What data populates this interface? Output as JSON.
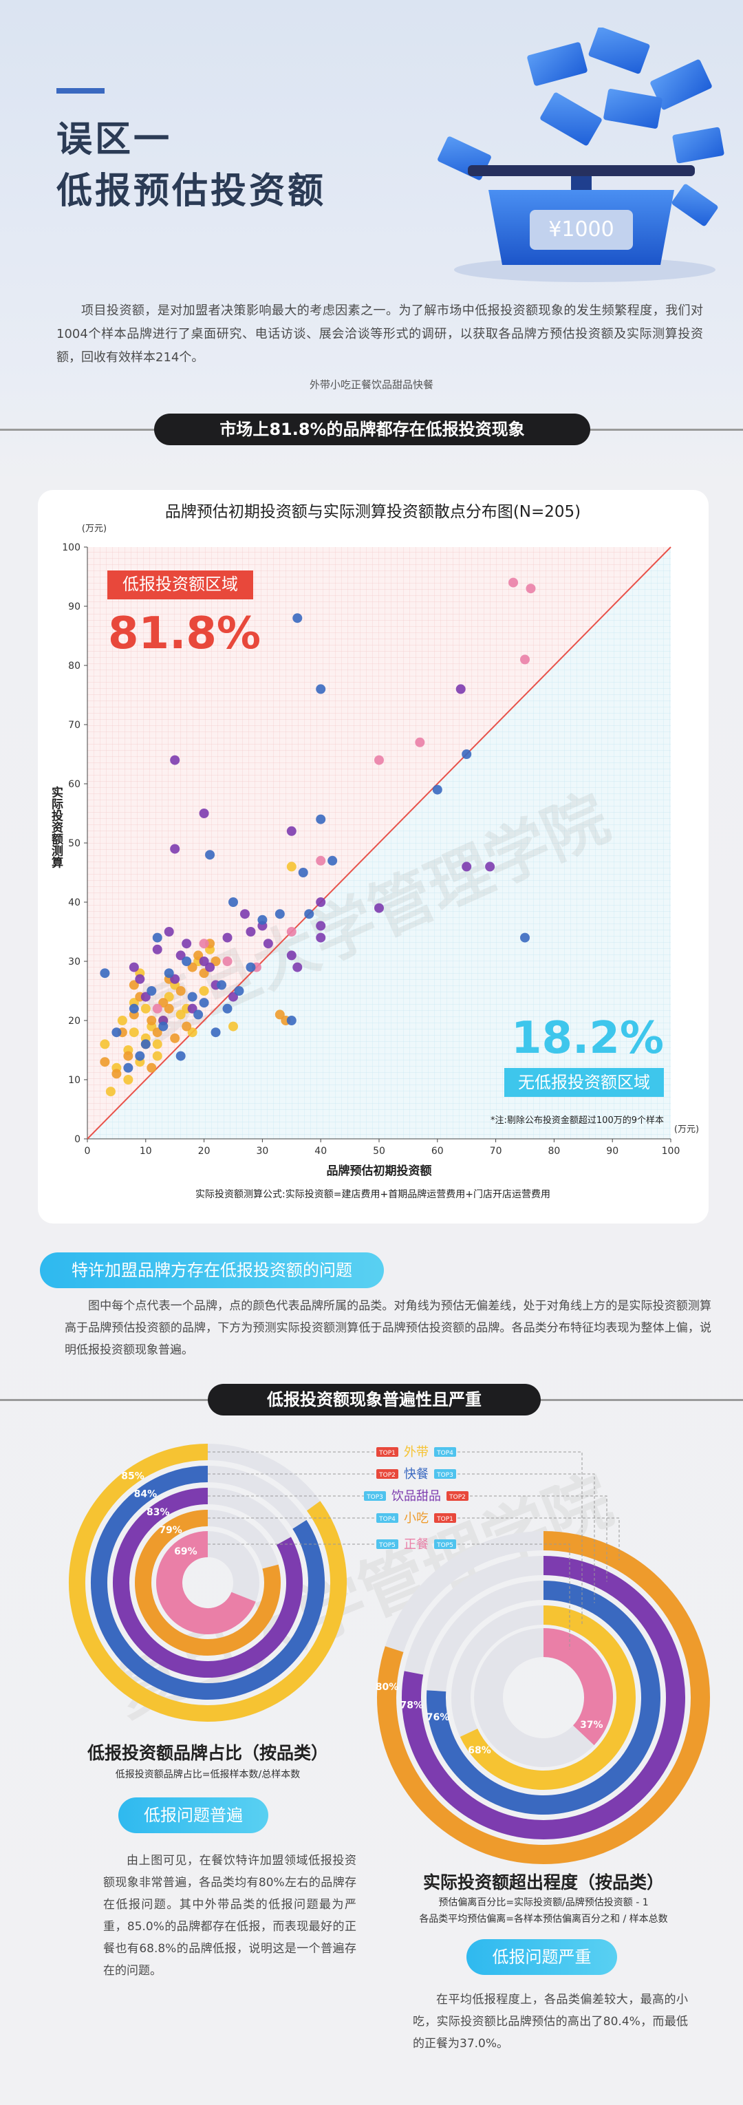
{
  "header": {
    "title_line1": "误区一",
    "title_line2": "低报预估投资额",
    "illustration_label": "¥1000"
  },
  "intro": "项目投资额，是对加盟者决策影响最大的考虑因素之一。为了解市场中低报投资额现象的发生频繁程度，我们对1004个样本品牌进行了桌面研究、电话访谈、展会洽谈等形式的调研，以获取各品牌方预估投资额及实际测算投资额，回收有效样本214个。",
  "watermark": "复旦大学管理学院",
  "section1": {
    "banner": "市场上81.8%的品牌都存在低报投资现象",
    "pill": "特许加盟品牌方存在低报投资额的问题",
    "text": "图中每个点代表一个品牌，点的颜色代表品牌所属的品类。对角线为预估无偏差线，处于对角线上方的是实际投资额测算高于品牌预估投资额的品牌，下方为预测实际投资额测算低于品牌预估投资额的品牌。各品类分布特征均表现为整体上偏，说明低报投资额现象普遍。"
  },
  "section2": {
    "banner": "低报投资额现象普遍性且严重",
    "left": {
      "title": "低报投资额品牌占比（按品类）",
      "formula": "低报投资额品牌占比=低报样本数/总样本数",
      "pill": "低报问题普遍",
      "text": "由上图可见，在餐饮特许加盟领域低报投资额现象非常普遍，各品类均有80%左右的品牌存在低报问题。其中外带品类的低报问题最为严重，85.0%的品牌都存在低报，而表现最好的正餐也有68.8%的品牌低报，说明这是一个普遍存在的问题。"
    },
    "right": {
      "title": "实际投资额超出程度（按品类）",
      "formula1": "预估偏离百分比=实际投资额/品牌预估投资额 - 1",
      "formula2": "各品类平均预估偏离=各样本预估偏离百分之和 / 样本总数",
      "pill": "低报问题严重",
      "text": "在平均低报程度上，各品类偏差较大，最高的小吃，实际投资额比品牌预估的高出了80.4%，而最低的正餐为37.0%。"
    }
  },
  "chart_data": [
    {
      "type": "scatter",
      "title": "品牌预估初期投资额与实际测算投资额散点分布图(N=205)",
      "x_label": "品牌预估初期投资额",
      "y_label": "实际投资额测算",
      "x_unit": "(万元)",
      "y_unit": "(万元)",
      "note": "*注:剔除公布投资金额超过100万的9个样本",
      "formula": "实际投资额测算公式:实际投资额=建店费用+首期品牌运营费用+门店开店运营费用",
      "annotations": {
        "upper_label": "低报投资额区域",
        "upper_share": "81.8%",
        "lower_share": "18.2%",
        "lower_label": "无低报投资额区域"
      },
      "xlim": [
        0,
        100
      ],
      "ylim": [
        0,
        100
      ],
      "xticks": [
        0,
        10,
        20,
        30,
        40,
        50,
        60,
        70,
        80,
        90,
        100
      ],
      "yticks": [
        0,
        10,
        20,
        30,
        40,
        50,
        60,
        70,
        80,
        90,
        100
      ],
      "series": [
        {
          "name": "外带",
          "color": "#f6c332",
          "x": [
            3,
            4,
            5,
            6,
            7,
            8,
            8,
            9,
            10,
            10,
            11,
            12,
            13,
            14,
            15,
            17,
            18,
            19,
            21,
            25,
            35,
            7,
            9,
            12,
            16,
            20
          ],
          "y": [
            16,
            8,
            12,
            20,
            15,
            18,
            23,
            13,
            22,
            17,
            19,
            16,
            20,
            24,
            26,
            22,
            18,
            30,
            32,
            19,
            46,
            10,
            28,
            14,
            21,
            25
          ]
        },
        {
          "name": "小吃",
          "color": "#ee9b2c",
          "x": [
            3,
            5,
            6,
            7,
            8,
            9,
            10,
            11,
            12,
            13,
            14,
            15,
            16,
            18,
            19,
            20,
            21,
            22,
            33,
            34,
            8,
            11,
            14,
            17
          ],
          "y": [
            13,
            11,
            18,
            14,
            21,
            24,
            16,
            20,
            18,
            23,
            27,
            17,
            25,
            29,
            31,
            28,
            33,
            30,
            21,
            20,
            26,
            12,
            22,
            19
          ]
        },
        {
          "name": "正餐",
          "color": "#ea7fa7",
          "x": [
            73,
            76,
            75,
            50,
            57,
            29,
            35,
            40,
            24,
            12,
            20
          ],
          "y": [
            94,
            93,
            81,
            64,
            67,
            29,
            35,
            47,
            30,
            22,
            33
          ]
        },
        {
          "name": "饮品甜品",
          "color": "#7d3caf",
          "x": [
            15,
            20,
            64,
            65,
            69,
            50,
            40,
            35,
            40,
            15,
            8,
            10,
            12,
            14,
            15,
            16,
            18,
            20,
            22,
            24,
            27,
            28,
            31,
            35,
            36,
            40,
            9,
            13,
            25,
            30,
            17,
            21
          ],
          "y": [
            64,
            55,
            76,
            46,
            46,
            39,
            36,
            52,
            40,
            49,
            29,
            24,
            32,
            35,
            27,
            31,
            22,
            30,
            26,
            34,
            38,
            35,
            33,
            31,
            29,
            34,
            27,
            20,
            24,
            36,
            33,
            29
          ]
        },
        {
          "name": "快餐",
          "color": "#3a69c0",
          "x": [
            36,
            40,
            40,
            65,
            60,
            75,
            21,
            37,
            42,
            35,
            33,
            25,
            3,
            5,
            7,
            8,
            10,
            11,
            13,
            14,
            16,
            18,
            19,
            20,
            22,
            23,
            26,
            28,
            30,
            38,
            12,
            17,
            24,
            9
          ],
          "y": [
            88,
            76,
            54,
            65,
            59,
            34,
            48,
            45,
            47,
            20,
            38,
            40,
            28,
            18,
            12,
            22,
            16,
            25,
            19,
            28,
            14,
            24,
            21,
            23,
            18,
            26,
            25,
            29,
            37,
            38,
            34,
            30,
            22,
            14
          ]
        }
      ]
    },
    {
      "type": "radial",
      "categories": [
        "外带",
        "快餐",
        "饮品甜品",
        "小吃",
        "正餐"
      ],
      "values": [
        85,
        84,
        83,
        79,
        69
      ],
      "value_labels": [
        "85%",
        "84%",
        "83%",
        "79%",
        "69%"
      ],
      "colors": [
        "#f6c332",
        "#3a69c0",
        "#7d3caf",
        "#ee9b2c",
        "#ea7fa7"
      ],
      "ylim": [
        0,
        100
      ],
      "rank_labels": [
        "TOP1",
        "TOP2",
        "TOP3",
        "TOP4",
        "TOP5"
      ],
      "rank_colors": [
        "#e8483b",
        "#e8483b",
        "#4fc3ee",
        "#4fc3ee",
        "#4fc3ee"
      ]
    },
    {
      "type": "radial",
      "values": [
        68,
        76,
        78,
        80,
        37
      ],
      "value_labels": [
        "68%",
        "76%",
        "78%",
        "80%",
        "37%"
      ],
      "colors": [
        "#f6c332",
        "#3a69c0",
        "#7d3caf",
        "#ee9b2c",
        "#ea7fa7"
      ],
      "ylim": [
        0,
        100
      ],
      "rank_labels": [
        "TOP4",
        "TOP3",
        "TOP2",
        "TOP1",
        "TOP5"
      ],
      "rank_colors": [
        "#4fc3ee",
        "#4fc3ee",
        "#e8483b",
        "#e8483b",
        "#4fc3ee"
      ]
    }
  ]
}
